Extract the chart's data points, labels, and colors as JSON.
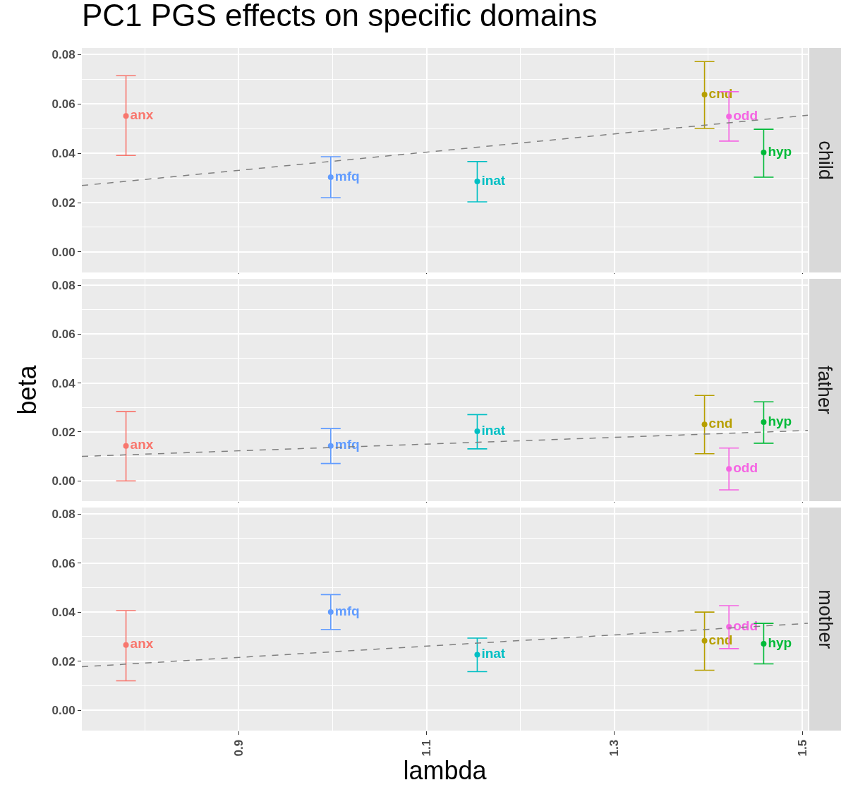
{
  "chart_data": [
    {
      "type": "scatter",
      "title": "PC1 PGS effects on specific domains",
      "annotations": [
        "child"
      ],
      "tick_labels": "y",
      "grid": true,
      "legend": false,
      "marker": "circle",
      "xlim": [
        0.733,
        1.506
      ],
      "xticks": [
        0.9,
        1.1,
        1.3,
        1.5
      ],
      "ylim": [
        -0.0083,
        0.0826
      ],
      "yticks": [
        {
          "value": 0,
          "label": "0.00"
        },
        {
          "value": 0.02,
          "label": "0.02"
        },
        {
          "value": 0.04,
          "label": "0.04"
        },
        {
          "value": 0.06,
          "label": "0.06"
        },
        {
          "value": 0.08,
          "label": "0.08"
        }
      ],
      "series": [
        {
          "name": "anx",
          "color": "#f8766d",
          "x": [
            0.78
          ],
          "values": [
            0.0551
          ],
          "errors": [
            [
              0.0391,
              0.0714
            ]
          ]
        },
        {
          "name": "mfq",
          "color": "#619cff",
          "x": [
            0.998
          ],
          "values": [
            0.0303
          ],
          "errors": [
            [
              0.022,
              0.0386
            ]
          ]
        },
        {
          "name": "inat",
          "color": "#00bfc4",
          "x": [
            1.154
          ],
          "values": [
            0.0286
          ],
          "errors": [
            [
              0.0203,
              0.0366
            ]
          ]
        },
        {
          "name": "cnd",
          "color": "#b79f00",
          "x": [
            1.396
          ],
          "values": [
            0.0637
          ],
          "errors": [
            [
              0.05,
              0.0771
            ]
          ]
        },
        {
          "name": "odd",
          "color": "#f564e3",
          "x": [
            1.422
          ],
          "values": [
            0.0549
          ],
          "errors": [
            [
              0.0449,
              0.0649
            ]
          ]
        },
        {
          "name": "hyp",
          "color": "#00ba38",
          "x": [
            1.459
          ],
          "values": [
            0.0403
          ],
          "errors": [
            [
              0.0303,
              0.0497
            ]
          ]
        },
        {
          "type": "line",
          "line_style": "dashed",
          "marker": "none",
          "color": "#7f7f7f",
          "x": [
            0.733,
            1.506
          ],
          "values": [
            0.0269,
            0.0554
          ]
        }
      ]
    },
    {
      "type": "scatter",
      "ylabel": "beta",
      "annotations": [
        "father"
      ],
      "tick_labels": "y",
      "grid": true,
      "legend": false,
      "marker": "circle",
      "xlim": [
        0.733,
        1.506
      ],
      "xticks": [
        0.9,
        1.1,
        1.3,
        1.5
      ],
      "ylim": [
        -0.0083,
        0.0826
      ],
      "yticks": [
        {
          "value": 0,
          "label": "0.00"
        },
        {
          "value": 0.02,
          "label": "0.02"
        },
        {
          "value": 0.04,
          "label": "0.04"
        },
        {
          "value": 0.06,
          "label": "0.06"
        },
        {
          "value": 0.08,
          "label": "0.08"
        }
      ],
      "series": [
        {
          "name": "anx",
          "color": "#f8766d",
          "x": [
            0.78
          ],
          "values": [
            0.0143
          ],
          "errors": [
            [
              0.0,
              0.0283
            ]
          ]
        },
        {
          "name": "mfq",
          "color": "#619cff",
          "x": [
            0.998
          ],
          "values": [
            0.0143
          ],
          "errors": [
            [
              0.0071,
              0.0214
            ]
          ]
        },
        {
          "name": "inat",
          "color": "#00bfc4",
          "x": [
            1.154
          ],
          "values": [
            0.0203
          ],
          "errors": [
            [
              0.0131,
              0.0271
            ]
          ]
        },
        {
          "name": "cnd",
          "color": "#b79f00",
          "x": [
            1.396
          ],
          "values": [
            0.0231
          ],
          "errors": [
            [
              0.0111,
              0.0349
            ]
          ]
        },
        {
          "name": "odd",
          "color": "#f564e3",
          "x": [
            1.422
          ],
          "values": [
            0.0049
          ],
          "errors": [
            [
              -0.0037,
              0.0134
            ]
          ]
        },
        {
          "name": "hyp",
          "color": "#00ba38",
          "x": [
            1.459
          ],
          "values": [
            0.024
          ],
          "errors": [
            [
              0.0154,
              0.0323
            ]
          ]
        },
        {
          "type": "line",
          "line_style": "dashed",
          "marker": "none",
          "color": "#7f7f7f",
          "x": [
            0.733,
            1.506
          ],
          "values": [
            0.01,
            0.0206
          ]
        }
      ]
    },
    {
      "type": "scatter",
      "xlabel": "lambda",
      "annotations": [
        "mother"
      ],
      "grid": true,
      "legend": false,
      "marker": "circle",
      "xlim": [
        0.733,
        1.506
      ],
      "xticks": [
        0.9,
        1.1,
        1.3,
        1.5
      ],
      "ylim": [
        -0.0083,
        0.0826
      ],
      "yticks": [
        {
          "value": 0,
          "label": "0.00"
        },
        {
          "value": 0.02,
          "label": "0.02"
        },
        {
          "value": 0.04,
          "label": "0.04"
        },
        {
          "value": 0.06,
          "label": "0.06"
        },
        {
          "value": 0.08,
          "label": "0.08"
        }
      ],
      "series": [
        {
          "name": "anx",
          "color": "#f8766d",
          "x": [
            0.78
          ],
          "values": [
            0.0266
          ],
          "errors": [
            [
              0.012,
              0.0406
            ]
          ]
        },
        {
          "name": "mfq",
          "color": "#619cff",
          "x": [
            0.998
          ],
          "values": [
            0.04
          ],
          "errors": [
            [
              0.0329,
              0.0471
            ]
          ]
        },
        {
          "name": "inat",
          "color": "#00bfc4",
          "x": [
            1.154
          ],
          "values": [
            0.0226
          ],
          "errors": [
            [
              0.0157,
              0.0294
            ]
          ]
        },
        {
          "name": "cnd",
          "color": "#b79f00",
          "x": [
            1.396
          ],
          "values": [
            0.0283
          ],
          "errors": [
            [
              0.0163,
              0.04
            ]
          ]
        },
        {
          "name": "odd",
          "color": "#f564e3",
          "x": [
            1.422
          ],
          "values": [
            0.034
          ],
          "errors": [
            [
              0.0251,
              0.0426
            ]
          ]
        },
        {
          "name": "hyp",
          "color": "#00ba38",
          "x": [
            1.459
          ],
          "values": [
            0.0271
          ],
          "errors": [
            [
              0.0189,
              0.0354
            ]
          ]
        },
        {
          "type": "line",
          "line_style": "dashed",
          "marker": "none",
          "color": "#7f7f7f",
          "x": [
            0.733,
            1.506
          ],
          "values": [
            0.0177,
            0.0354
          ]
        }
      ]
    }
  ]
}
